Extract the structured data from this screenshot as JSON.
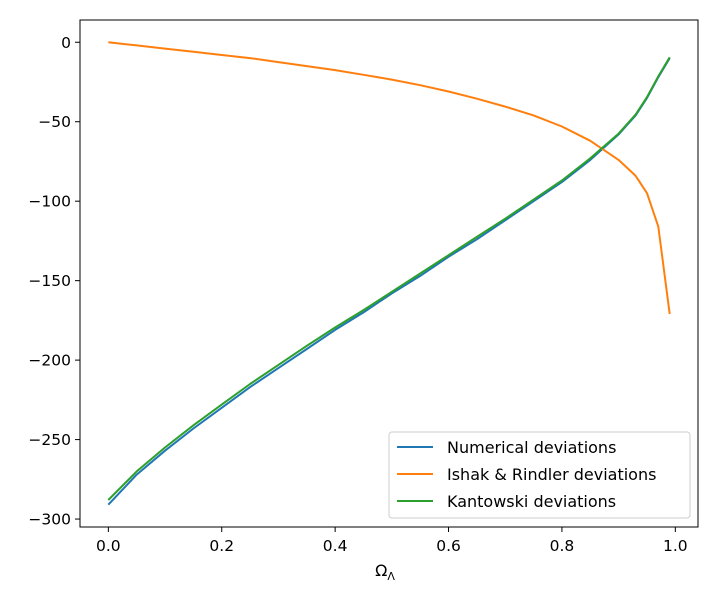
{
  "chart_data": {
    "type": "line",
    "title": "",
    "xlabel": "Ω",
    "xlabel_subscript": "Λ",
    "ylabel": "",
    "xlim": [
      -0.05,
      1.04
    ],
    "ylim": [
      -305,
      14
    ],
    "xticks": [
      0.0,
      0.2,
      0.4,
      0.6,
      0.8,
      1.0
    ],
    "xtick_labels": [
      "0.0",
      "0.2",
      "0.4",
      "0.6",
      "0.8",
      "1.0"
    ],
    "yticks": [
      0,
      -50,
      -100,
      -150,
      -200,
      -250,
      -300
    ],
    "ytick_labels": [
      "0",
      "−50",
      "−100",
      "−150",
      "−200",
      "−250",
      "−300"
    ],
    "grid": false,
    "legend_position": "lower-right",
    "series": [
      {
        "name": "Numerical deviations",
        "color": "#1f77b4",
        "x": [
          0.0,
          0.05,
          0.1,
          0.15,
          0.2,
          0.25,
          0.3,
          0.35,
          0.4,
          0.45,
          0.5,
          0.55,
          0.6,
          0.65,
          0.7,
          0.75,
          0.8,
          0.85,
          0.9,
          0.93,
          0.95,
          0.97,
          0.99
        ],
        "y": [
          -291,
          -272,
          -257,
          -243,
          -230,
          -217,
          -205,
          -193,
          -181,
          -170,
          -158,
          -147,
          -135,
          -124,
          -112,
          -100,
          -88,
          -74,
          -58,
          -46,
          -35,
          -22,
          -10
        ]
      },
      {
        "name": "Ishak & Rindler deviations",
        "color": "#ff7f0e",
        "x": [
          0.0,
          0.05,
          0.1,
          0.15,
          0.2,
          0.25,
          0.3,
          0.35,
          0.4,
          0.45,
          0.5,
          0.55,
          0.6,
          0.65,
          0.7,
          0.75,
          0.8,
          0.85,
          0.9,
          0.93,
          0.95,
          0.97,
          0.99
        ],
        "y": [
          0,
          -2,
          -4,
          -6,
          -8,
          -10,
          -12.5,
          -15,
          -17.5,
          -20.5,
          -23.5,
          -27,
          -31,
          -35.5,
          -40.5,
          -46,
          -53,
          -62,
          -74,
          -84,
          -95,
          -116,
          -171
        ]
      },
      {
        "name": "Kantowski deviations",
        "color": "#2ca02c",
        "x": [
          0.0,
          0.05,
          0.1,
          0.15,
          0.2,
          0.25,
          0.3,
          0.35,
          0.4,
          0.45,
          0.5,
          0.55,
          0.6,
          0.65,
          0.7,
          0.75,
          0.8,
          0.85,
          0.9,
          0.93,
          0.95,
          0.97,
          0.99
        ],
        "y": [
          -288,
          -270,
          -255,
          -241,
          -228,
          -215,
          -203,
          -191,
          -179.5,
          -168.5,
          -157,
          -145.5,
          -134,
          -122.5,
          -111,
          -99,
          -87,
          -73,
          -57.5,
          -45.5,
          -34.5,
          -21.5,
          -9.5
        ]
      }
    ]
  }
}
